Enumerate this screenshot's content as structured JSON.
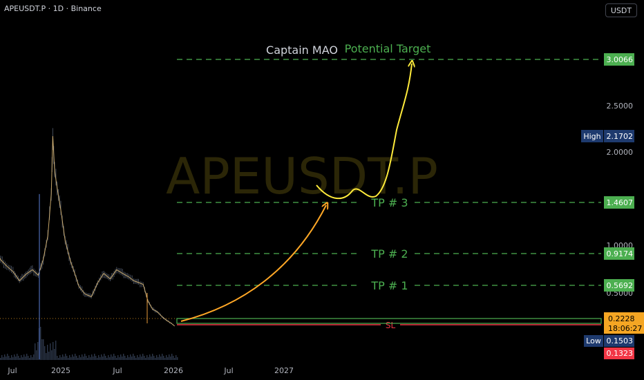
{
  "header": {
    "symbol_line": "APEUSDT.P · 1D · Binance",
    "currency": "USDT"
  },
  "watermark": "APEUSDT.P",
  "annotations": {
    "author": "Captain MAO",
    "target_label": "Potential Target",
    "sl_label": "SL"
  },
  "colors": {
    "background": "#000000",
    "green": "#4caf50",
    "red": "#f23645",
    "orange_arrow": "#ffa726",
    "yellow_arrow": "#ffeb3b",
    "candle": "#aab4c8",
    "price_tag": "#f5a623"
  },
  "chart_data": {
    "type": "line",
    "x_ticks": [
      "Jul",
      "2025",
      "Jul",
      "2026",
      "Jul",
      "2027"
    ],
    "y_ticks": [
      "3.0066",
      "2.5000",
      "2.1702",
      "2.0000",
      "1.4607",
      "1.0000",
      "0.9174",
      "0.5692",
      "0.5000",
      "0.2228",
      "0.1503",
      "0.1323"
    ],
    "levels": [
      {
        "label": "Potential Target",
        "value": 3.0066
      },
      {
        "label": "TP # 3",
        "value": 1.4607
      },
      {
        "label": "TP # 2",
        "value": 0.9174
      },
      {
        "label": "TP # 1",
        "value": 0.5692
      },
      {
        "label": "SL",
        "value": 0.1323
      }
    ],
    "price_scale": {
      "high": {
        "label": "High",
        "value": "2.1702"
      },
      "low": {
        "label": "Low",
        "value": "0.1503"
      },
      "last_price": "0.2228",
      "countdown": "18:06:27",
      "stop_value": "0.1323",
      "ticks": [
        "2.5000",
        "2.0000",
        "1.0000",
        "0.5000"
      ]
    },
    "price_series": {
      "dates": [
        "2024-06-01",
        "2024-06-20",
        "2024-07-10",
        "2024-07-30",
        "2024-08-20",
        "2024-09-10",
        "2024-10-01",
        "2024-10-20",
        "2024-11-05",
        "2024-11-20",
        "2024-12-01",
        "2024-12-06",
        "2024-12-12",
        "2024-12-20",
        "2025-01-01",
        "2025-01-15",
        "2025-02-01",
        "2025-02-15",
        "2025-03-01",
        "2025-03-20",
        "2025-04-10",
        "2025-05-01",
        "2025-05-20",
        "2025-06-10",
        "2025-07-01",
        "2025-07-20",
        "2025-08-10",
        "2025-08-25",
        "2025-09-10",
        "2025-09-25",
        "2025-10-10",
        "2025-10-25",
        "2025-11-10",
        "2025-11-25",
        "2025-12-10",
        "2025-12-25",
        "2026-01-05"
      ],
      "values": [
        0.97,
        0.85,
        0.78,
        0.72,
        0.62,
        0.69,
        0.74,
        0.68,
        0.85,
        1.1,
        1.55,
        2.17,
        1.8,
        1.62,
        1.38,
        1.05,
        0.84,
        0.7,
        0.56,
        0.49,
        0.46,
        0.6,
        0.7,
        0.64,
        0.74,
        0.7,
        0.66,
        0.62,
        0.6,
        0.58,
        0.42,
        0.33,
        0.3,
        0.25,
        0.21,
        0.18,
        0.15
      ]
    },
    "projection": {
      "orange": {
        "from_value": 0.2228,
        "to_value": 1.4607
      },
      "yellow": {
        "peak_value": 3.0066
      }
    }
  }
}
